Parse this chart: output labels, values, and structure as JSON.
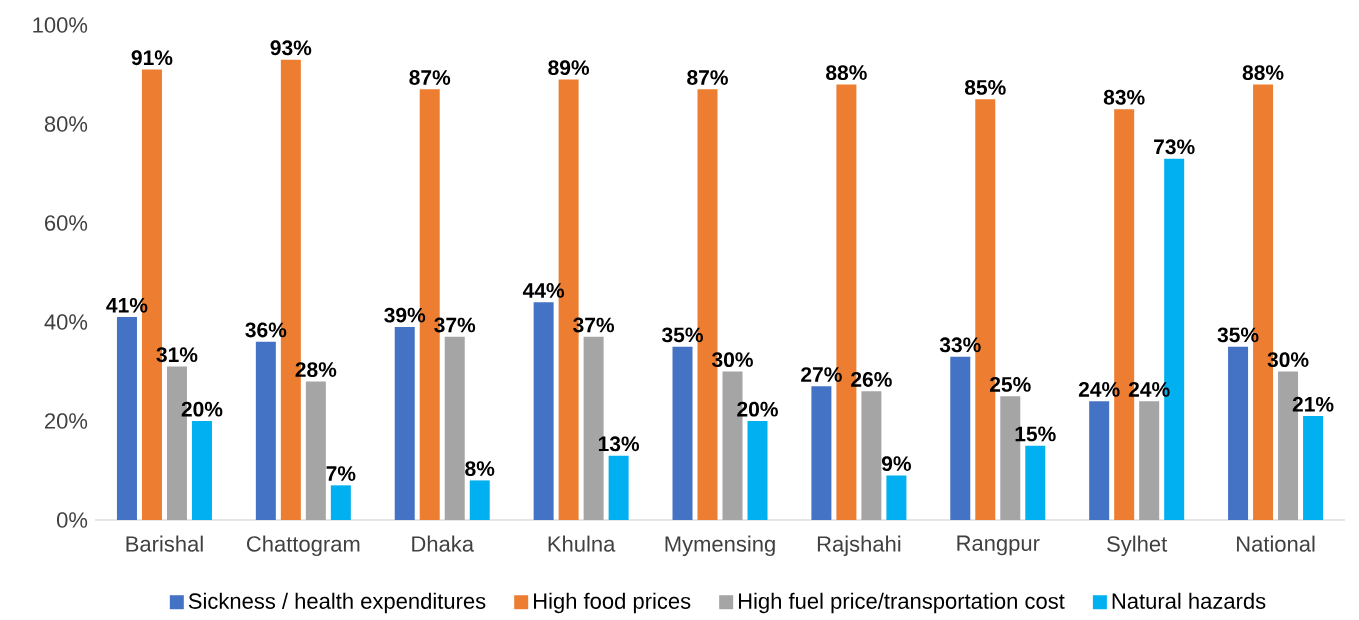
{
  "chart_data": {
    "type": "bar",
    "categories": [
      "Barishal",
      "Chattogram",
      "Dhaka",
      "Khulna",
      "Mymensing",
      "Rajshahi",
      "Rangpur",
      "Sylhet",
      "National"
    ],
    "series": [
      {
        "name": "Sickness / health expenditures",
        "color": "#4472c4",
        "values": [
          41,
          36,
          39,
          44,
          35,
          27,
          33,
          24,
          35
        ],
        "value_labels": [
          "41%",
          "36%",
          "39%",
          "44%",
          "35%",
          "27%",
          "33%",
          "24%",
          "35%"
        ]
      },
      {
        "name": "High food prices",
        "color": "#ed7d31",
        "values": [
          91,
          93,
          87,
          89,
          87,
          88,
          85,
          83,
          88
        ],
        "value_labels": [
          "91%",
          "93%",
          "87%",
          "89%",
          "87%",
          "88%",
          "85%",
          "83%",
          "88%"
        ]
      },
      {
        "name": "High fuel price/transportation cost",
        "color": "#a5a5a5",
        "values": [
          31,
          28,
          37,
          37,
          30,
          26,
          25,
          24,
          30
        ],
        "value_labels": [
          "31%",
          "28%",
          "37%",
          "37%",
          "30%",
          "26%",
          "25%",
          "24%",
          "30%"
        ]
      },
      {
        "name": "Natural hazards",
        "color": "#00b0f0",
        "values": [
          20,
          7,
          8,
          13,
          20,
          9,
          15,
          73,
          21
        ],
        "value_labels": [
          "20%",
          "7%",
          "8%",
          "13%",
          "20%",
          "9%",
          "15%",
          "73%",
          "21%"
        ]
      }
    ],
    "ylim": [
      0,
      100
    ],
    "yticks": [
      {
        "value": 0,
        "label": "0%"
      },
      {
        "value": 20,
        "label": "20%"
      },
      {
        "value": 40,
        "label": "40%"
      },
      {
        "value": 60,
        "label": "60%"
      },
      {
        "value": 80,
        "label": "80%"
      },
      {
        "value": 100,
        "label": "100%"
      }
    ],
    "legend": "bottom"
  }
}
